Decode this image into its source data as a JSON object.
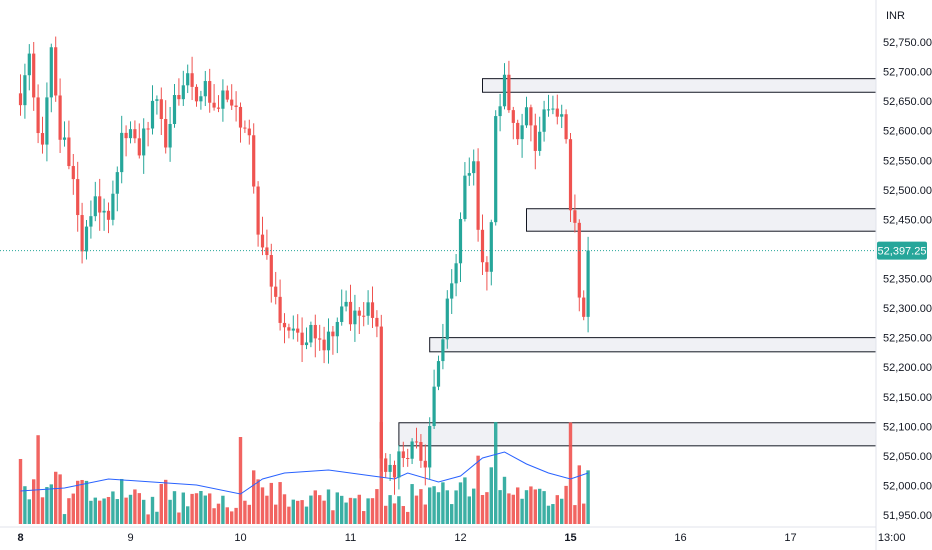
{
  "chart_data": {
    "type": "candlestick",
    "currency": "INR",
    "last_price": 52397.25,
    "last_price_label": "52,397.25",
    "ylim": [
      51930,
      52820
    ],
    "y_ticks": [
      {
        "value": 52750,
        "label": "52,750.00"
      },
      {
        "value": 52700,
        "label": "52,700.00"
      },
      {
        "value": 52650,
        "label": "52,650.00"
      },
      {
        "value": 52600,
        "label": "52,600.00"
      },
      {
        "value": 52550,
        "label": "52,550.00"
      },
      {
        "value": 52500,
        "label": "52,500.00"
      },
      {
        "value": 52450,
        "label": "52,450.00"
      },
      {
        "value": 52350,
        "label": "52,350.00"
      },
      {
        "value": 52300,
        "label": "52,300.00"
      },
      {
        "value": 52250,
        "label": "52,250.00"
      },
      {
        "value": 52200,
        "label": "52,200.00"
      },
      {
        "value": 52150,
        "label": "52,150.00"
      },
      {
        "value": 52100,
        "label": "52,100.00"
      },
      {
        "value": 52050,
        "label": "52,050.00"
      },
      {
        "value": 52000,
        "label": "52,000.00"
      },
      {
        "value": 51950,
        "label": "51,950.00"
      }
    ],
    "x_ticks": [
      {
        "bar": 0,
        "label": "8",
        "bold": true
      },
      {
        "bar": 25,
        "label": "9",
        "bold": false
      },
      {
        "bar": 50,
        "label": "10",
        "bold": false
      },
      {
        "bar": 75,
        "label": "11",
        "bold": false
      },
      {
        "bar": 100,
        "label": "12",
        "bold": false
      },
      {
        "bar": 125,
        "label": "15",
        "bold": true
      },
      {
        "bar": 150,
        "label": "16",
        "bold": false
      },
      {
        "bar": 175,
        "label": "17",
        "bold": false
      },
      {
        "bar": 198,
        "label": "13:00",
        "bold": false
      }
    ],
    "zones": [
      {
        "start_bar": 105,
        "low": 52665,
        "high": 52688
      },
      {
        "start_bar": 115,
        "low": 52430,
        "high": 52468
      },
      {
        "start_bar": 93,
        "low": 52226,
        "high": 52250
      },
      {
        "start_bar": 86,
        "low": 52067,
        "high": 52106
      }
    ],
    "keyframes": [
      [
        0,
        52630
      ],
      [
        2,
        52720
      ],
      [
        3,
        52650
      ],
      [
        5,
        52560
      ],
      [
        7,
        52740
      ],
      [
        9,
        52600
      ],
      [
        12,
        52520
      ],
      [
        14,
        52390
      ],
      [
        16,
        52460
      ],
      [
        18,
        52480
      ],
      [
        20,
        52440
      ],
      [
        23,
        52580
      ],
      [
        25,
        52600
      ],
      [
        27,
        52570
      ],
      [
        29,
        52620
      ],
      [
        31,
        52650
      ],
      [
        33,
        52590
      ],
      [
        36,
        52670
      ],
      [
        38,
        52710
      ],
      [
        40,
        52640
      ],
      [
        42,
        52670
      ],
      [
        45,
        52640
      ],
      [
        47,
        52670
      ],
      [
        50,
        52610
      ],
      [
        52,
        52590
      ],
      [
        54,
        52440
      ],
      [
        56,
        52380
      ],
      [
        58,
        52300
      ],
      [
        60,
        52260
      ],
      [
        62,
        52250
      ],
      [
        65,
        52260
      ],
      [
        68,
        52240
      ],
      [
        70,
        52250
      ],
      [
        72,
        52280
      ],
      [
        74,
        52300
      ],
      [
        77,
        52270
      ],
      [
        79,
        52290
      ],
      [
        81,
        52270
      ],
      [
        82,
        52050
      ],
      [
        84,
        52020
      ],
      [
        86,
        52040
      ],
      [
        88,
        52060
      ],
      [
        90,
        52070
      ],
      [
        92,
        52050
      ],
      [
        95,
        52200
      ],
      [
        97,
        52320
      ],
      [
        99,
        52380
      ],
      [
        101,
        52520
      ],
      [
        103,
        52550
      ],
      [
        104,
        52420
      ],
      [
        105,
        52360
      ],
      [
        106,
        52370
      ],
      [
        107,
        52440
      ],
      [
        108,
        52620
      ],
      [
        110,
        52690
      ],
      [
        111,
        52620
      ],
      [
        113,
        52600
      ],
      [
        115,
        52640
      ],
      [
        117,
        52580
      ],
      [
        119,
        52630
      ],
      [
        121,
        52650
      ],
      [
        123,
        52620
      ],
      [
        124,
        52580
      ],
      [
        125,
        52470
      ],
      [
        126,
        52440
      ],
      [
        127,
        52310
      ],
      [
        128,
        52300
      ],
      [
        129,
        52400
      ]
    ],
    "sma_points": [
      [
        0,
        0.11
      ],
      [
        10,
        0.12
      ],
      [
        20,
        0.15
      ],
      [
        30,
        0.14
      ],
      [
        40,
        0.13
      ],
      [
        50,
        0.1
      ],
      [
        55,
        0.15
      ],
      [
        60,
        0.17
      ],
      [
        70,
        0.18
      ],
      [
        80,
        0.16
      ],
      [
        85,
        0.15
      ],
      [
        88,
        0.17
      ],
      [
        95,
        0.14
      ],
      [
        100,
        0.16
      ],
      [
        105,
        0.22
      ],
      [
        110,
        0.24
      ],
      [
        115,
        0.2
      ],
      [
        120,
        0.17
      ],
      [
        125,
        0.15
      ],
      [
        129,
        0.17
      ]
    ]
  },
  "colors": {
    "up": "#26a69a",
    "down": "#ef5350",
    "up_volume": "#26a69a",
    "down_volume": "#ef5350",
    "sma": "#2962ff",
    "zone_fill": "#f0f1f5",
    "zone_stroke": "#131722",
    "last_price_line": "#26a69a",
    "last_price_badge": "#26a69a",
    "axis_text": "#131722",
    "separator": "#d1d4dc"
  }
}
